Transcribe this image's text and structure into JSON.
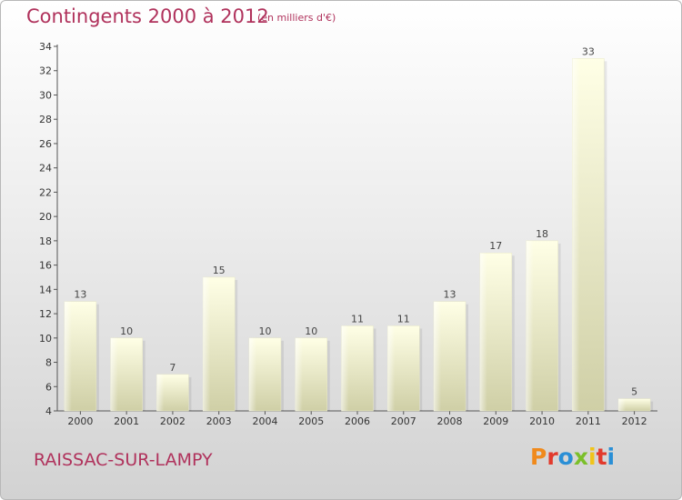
{
  "header": {
    "title": "Contingents 2000 à 2012",
    "subtitle": "(en milliers d'€)"
  },
  "footer": {
    "commune": "RAISSAC-SUR-LAMPY",
    "brand": "Proxiti",
    "brand_colors": [
      "#f08a1c",
      "#e23a2c",
      "#2a8fd6",
      "#7bbf2a",
      "#f0c419",
      "#e23a2c",
      "#2a8fd6"
    ]
  },
  "colors": {
    "title": "#b0325c",
    "bar_top": "#ffffe6",
    "bar_bottom": "#cfcfa6"
  },
  "chart_data": {
    "type": "bar",
    "title": "Contingents 2000 à 2012",
    "subtitle": "(en milliers d'€)",
    "categories": [
      "2000",
      "2001",
      "2002",
      "2003",
      "2004",
      "2005",
      "2006",
      "2007",
      "2008",
      "2009",
      "2010",
      "2011",
      "2012"
    ],
    "values": [
      13,
      10,
      7,
      15,
      10,
      10,
      11,
      11,
      13,
      17,
      18,
      33,
      5
    ],
    "ylim": [
      4,
      34
    ],
    "yticks": [
      4,
      6,
      8,
      10,
      12,
      14,
      16,
      18,
      20,
      22,
      24,
      26,
      28,
      30,
      32,
      34
    ],
    "grid": false,
    "legend": "none",
    "xlabel": "",
    "ylabel": ""
  }
}
